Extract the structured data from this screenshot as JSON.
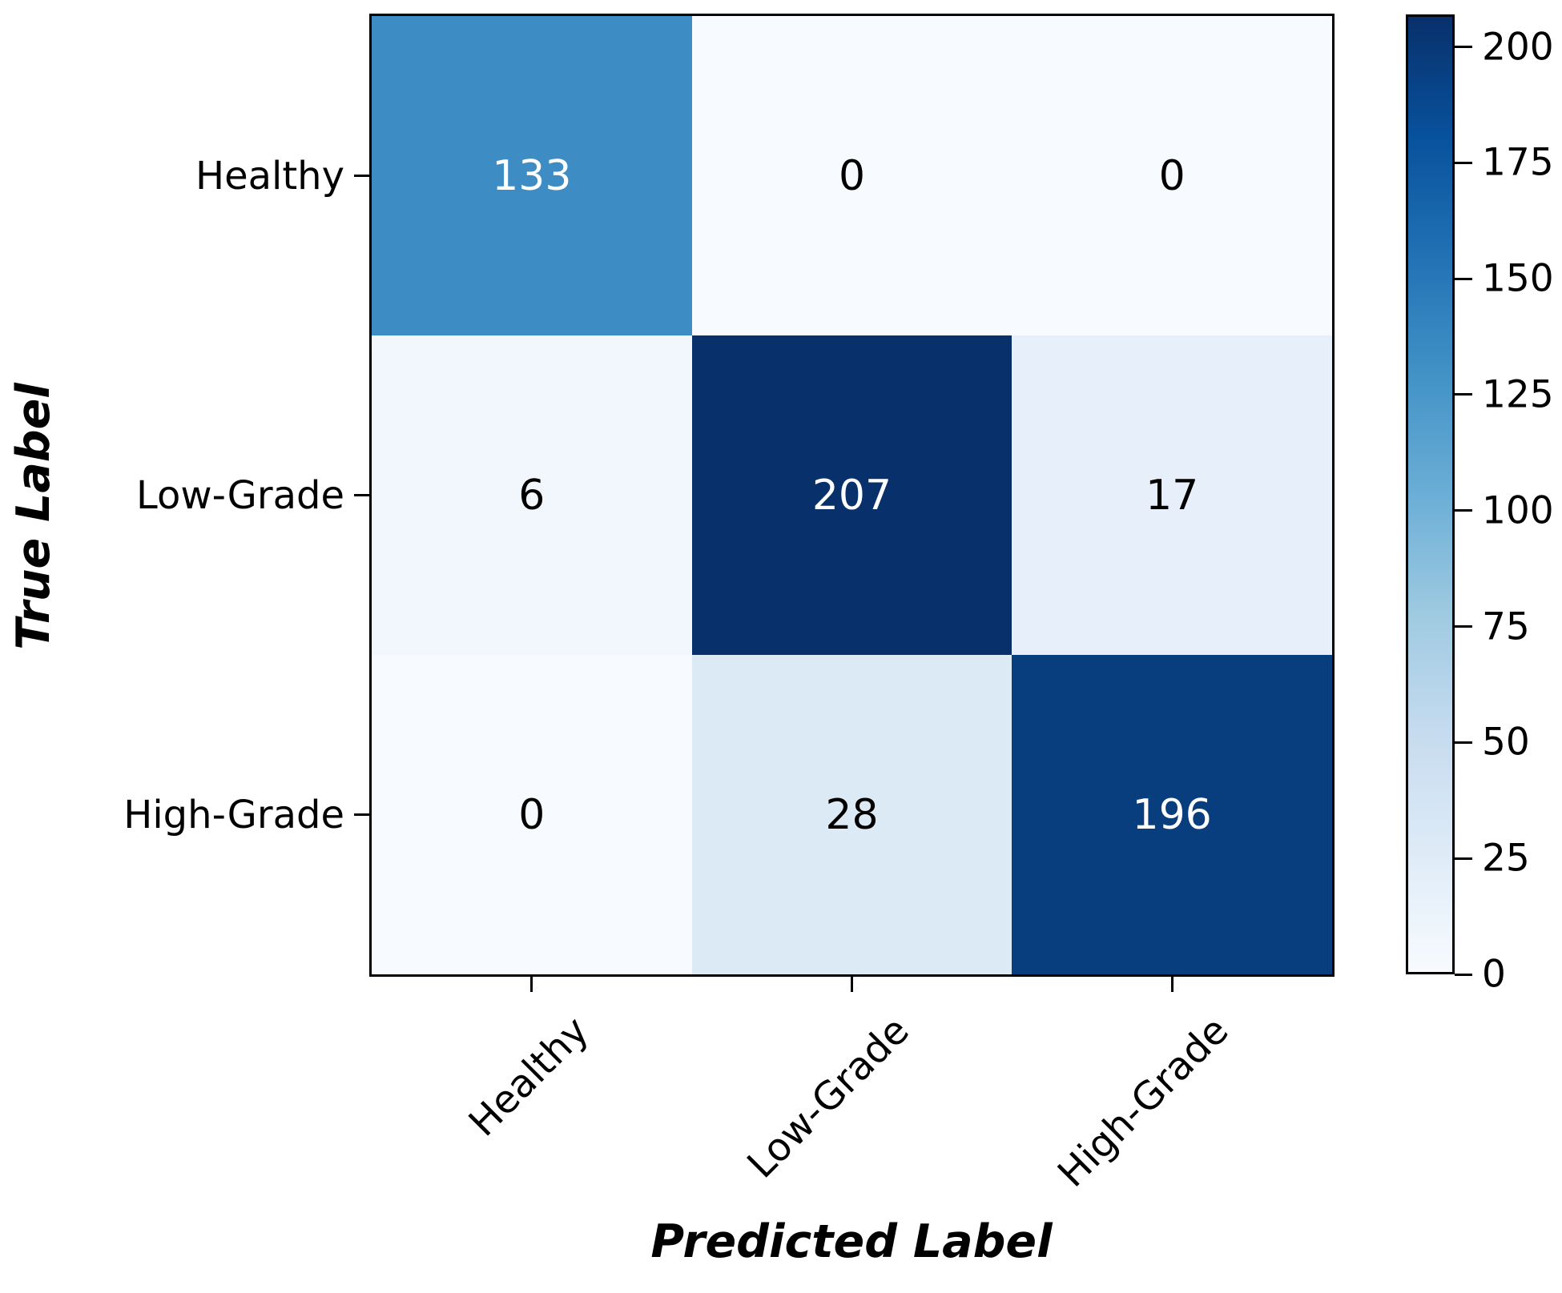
{
  "chart_data": {
    "type": "heatmap",
    "subtype": "confusion-matrix",
    "title": "",
    "xlabel": "Predicted Label",
    "ylabel": "True Label",
    "x_categories": [
      "Healthy",
      "Low-Grade",
      "High-Grade"
    ],
    "y_categories": [
      "Healthy",
      "Low-Grade",
      "High-Grade"
    ],
    "matrix": [
      [
        133,
        0,
        0
      ],
      [
        6,
        207,
        17
      ],
      [
        0,
        28,
        196
      ]
    ],
    "vmin": 0,
    "vmax": 207,
    "colormap": "Blues",
    "colorbar_ticks": [
      0,
      25,
      50,
      75,
      100,
      125,
      150,
      175,
      200
    ],
    "colorbar_position": "right",
    "grid": false
  },
  "colors": {
    "background": "#ffffff",
    "spine": "#000000",
    "cell_fills": [
      [
        "#3d8cc3",
        "#f7fbff",
        "#f7fbff"
      ],
      [
        "#f1f7fd",
        "#08306b",
        "#e7f0fa"
      ],
      [
        "#f7fbff",
        "#dceaf6",
        "#093e7e"
      ]
    ],
    "cell_text": [
      [
        "#ffffff",
        "#000000",
        "#000000"
      ],
      [
        "#000000",
        "#ffffff",
        "#000000"
      ],
      [
        "#000000",
        "#000000",
        "#ffffff"
      ]
    ],
    "colorbar_gradient": [
      "#f7fbff",
      "#deebf7",
      "#c6dbef",
      "#9ecae1",
      "#6baed6",
      "#4292c6",
      "#2171b5",
      "#08519c",
      "#08306b"
    ]
  }
}
